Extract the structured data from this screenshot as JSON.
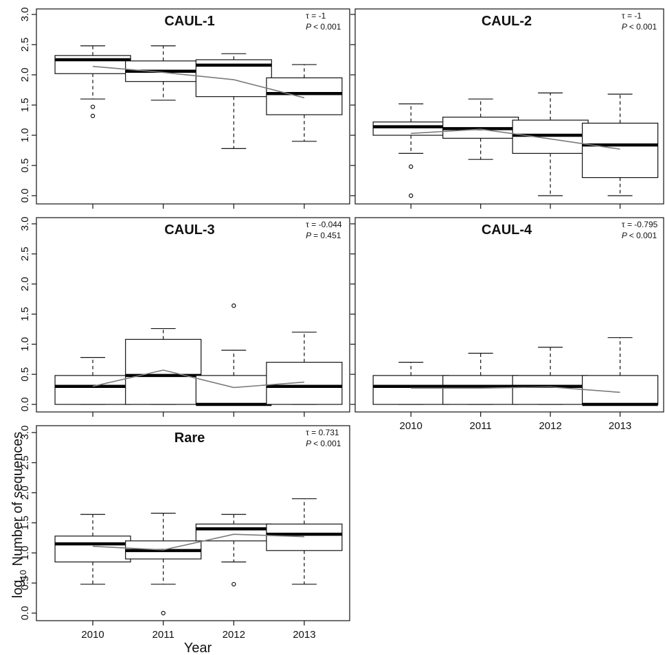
{
  "chart_data": {
    "type": "boxplot",
    "xlabel": "Year",
    "ylabel": "log",
    "ylabel_sub": "10",
    "ylabel_rest": " Number of sequences",
    "categories": [
      "2010",
      "2011",
      "2012",
      "2013"
    ],
    "ylim": [
      0,
      3
    ],
    "yticks": [
      "0.0",
      "0.5",
      "1.0",
      "1.5",
      "2.0",
      "2.5",
      "3.0"
    ],
    "tau_symbol": "τ",
    "p_symbol": "P",
    "panels": [
      {
        "title": "CAUL-1",
        "tau": "= -1",
        "p": "< 0.001",
        "boxes": [
          {
            "min": 1.6,
            "q1": 2.02,
            "median": 2.25,
            "q3": 2.32,
            "max": 2.48,
            "outliers": [
              1.47,
              1.32
            ]
          },
          {
            "min": 1.58,
            "q1": 1.89,
            "median": 2.06,
            "q3": 2.23,
            "max": 2.48,
            "outliers": []
          },
          {
            "min": 0.78,
            "q1": 1.64,
            "median": 2.16,
            "q3": 2.25,
            "max": 2.35,
            "outliers": []
          },
          {
            "min": 0.9,
            "q1": 1.34,
            "median": 1.69,
            "q3": 1.95,
            "max": 2.17,
            "outliers": []
          }
        ],
        "trend": [
          2.14,
          2.04,
          1.92,
          1.62
        ]
      },
      {
        "title": "CAUL-2",
        "tau": "= -1",
        "p": "< 0.001",
        "boxes": [
          {
            "min": 0.7,
            "q1": 1.0,
            "median": 1.14,
            "q3": 1.22,
            "max": 1.52,
            "outliers": [
              0.48,
              0.0
            ]
          },
          {
            "min": 0.6,
            "q1": 0.95,
            "median": 1.11,
            "q3": 1.3,
            "max": 1.6,
            "outliers": []
          },
          {
            "min": 0.0,
            "q1": 0.7,
            "median": 1.0,
            "q3": 1.25,
            "max": 1.7,
            "outliers": []
          },
          {
            "min": 0.0,
            "q1": 0.3,
            "median": 0.84,
            "q3": 1.2,
            "max": 1.68,
            "outliers": []
          }
        ],
        "trend": [
          1.03,
          1.1,
          0.94,
          0.77
        ]
      },
      {
        "title": "CAUL-3",
        "tau": "= -0.044",
        "p": "= 0.451",
        "boxes": [
          {
            "min": 0.0,
            "q1": 0.0,
            "median": 0.3,
            "q3": 0.48,
            "max": 0.78,
            "outliers": []
          },
          {
            "min": 0.0,
            "q1": 0.0,
            "median": 0.48,
            "q3": 1.08,
            "max": 1.26,
            "outliers": []
          },
          {
            "min": 0.0,
            "q1": 0.0,
            "median": 0.0,
            "q3": 0.48,
            "max": 0.9,
            "outliers": [
              1.64
            ]
          },
          {
            "min": 0.0,
            "q1": 0.0,
            "median": 0.3,
            "q3": 0.7,
            "max": 1.2,
            "outliers": []
          }
        ],
        "trend": [
          0.3,
          0.57,
          0.28,
          0.37
        ]
      },
      {
        "title": "CAUL-4",
        "tau": "= -0.795",
        "p": "< 0.001",
        "boxes": [
          {
            "min": 0.0,
            "q1": 0.0,
            "median": 0.3,
            "q3": 0.48,
            "max": 0.7,
            "outliers": []
          },
          {
            "min": 0.0,
            "q1": 0.0,
            "median": 0.3,
            "q3": 0.48,
            "max": 0.85,
            "outliers": []
          },
          {
            "min": 0.0,
            "q1": 0.0,
            "median": 0.3,
            "q3": 0.48,
            "max": 0.95,
            "outliers": []
          },
          {
            "min": 0.0,
            "q1": 0.0,
            "median": 0.0,
            "q3": 0.48,
            "max": 1.11,
            "outliers": []
          }
        ],
        "trend": [
          0.27,
          0.27,
          0.29,
          0.2
        ]
      },
      {
        "title": "Rare",
        "tau": "= 0.731",
        "p": "< 0.001",
        "boxes": [
          {
            "min": 0.48,
            "q1": 0.85,
            "median": 1.15,
            "q3": 1.28,
            "max": 1.64,
            "outliers": []
          },
          {
            "min": 0.48,
            "q1": 0.9,
            "median": 1.04,
            "q3": 1.2,
            "max": 1.66,
            "outliers": [
              0.0
            ]
          },
          {
            "min": 0.85,
            "q1": 1.2,
            "median": 1.4,
            "q3": 1.48,
            "max": 1.64,
            "outliers": [
              0.48
            ]
          },
          {
            "min": 0.48,
            "q1": 1.04,
            "median": 1.31,
            "q3": 1.48,
            "max": 1.9,
            "outliers": []
          }
        ],
        "trend": [
          1.11,
          1.05,
          1.31,
          1.27
        ]
      }
    ]
  }
}
